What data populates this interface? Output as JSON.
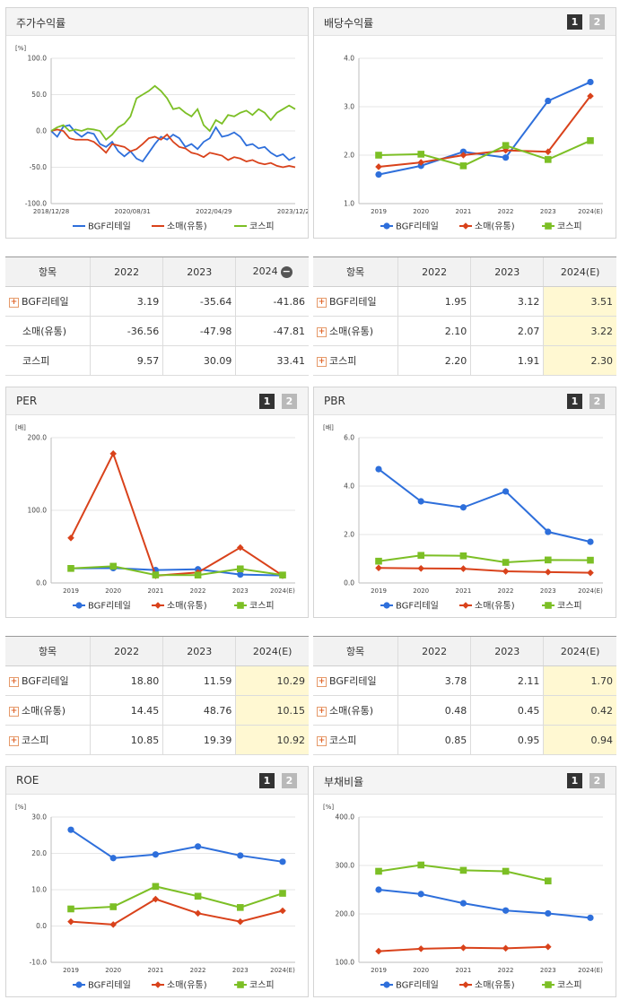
{
  "colors": {
    "bgf": "#2e6fdb",
    "retail": "#d9421b",
    "kospi": "#7cbf25"
  },
  "icons": {
    "expand": "plus-icon",
    "collapse": "minus-icon"
  },
  "pages": {
    "one": "1",
    "two": "2"
  },
  "charts": {
    "stock": {
      "title": "주가수익률",
      "unit": "[%]",
      "chart_data": {
        "type": "line",
        "ylim": [
          -100,
          100
        ],
        "yticks": [
          "100.0",
          "50.0",
          "0.0",
          "-50.0",
          "-100.0"
        ],
        "x_tick_labels": [
          "2018/12/28",
          "2020/08/31",
          "2022/04/29",
          "2023/12/28"
        ],
        "series": [
          {
            "name": "BGF리테일",
            "values": [
              0,
              -8,
              6,
              8,
              -2,
              -8,
              -2,
              -4,
              -18,
              -22,
              -15,
              -28,
              -35,
              -28,
              -38,
              -42,
              -30,
              -18,
              -8,
              -12,
              -5,
              -10,
              -22,
              -18,
              -25,
              -15,
              -10,
              5,
              -8,
              -6,
              -2,
              -8,
              -20,
              -18,
              -24,
              -22,
              -30,
              -35,
              -32,
              -40,
              -36
            ]
          },
          {
            "name": "소매(유통)",
            "values": [
              0,
              2,
              0,
              -10,
              -12,
              -12,
              -12,
              -15,
              -22,
              -30,
              -18,
              -20,
              -22,
              -28,
              -25,
              -18,
              -10,
              -8,
              -12,
              -5,
              -15,
              -22,
              -24,
              -30,
              -32,
              -36,
              -30,
              -32,
              -34,
              -40,
              -36,
              -38,
              -42,
              -40,
              -44,
              -46,
              -44,
              -48,
              -50,
              -48,
              -50
            ]
          },
          {
            "name": "코스피",
            "values": [
              0,
              5,
              8,
              0,
              2,
              0,
              3,
              2,
              0,
              -12,
              -5,
              5,
              10,
              20,
              45,
              50,
              55,
              62,
              55,
              45,
              30,
              32,
              25,
              20,
              30,
              8,
              0,
              15,
              10,
              22,
              20,
              25,
              28,
              22,
              30,
              25,
              15,
              25,
              30,
              35,
              30
            ]
          }
        ]
      }
    },
    "div": {
      "title": "배당수익률",
      "chart_data": {
        "type": "line",
        "ylim": [
          1.0,
          4.0
        ],
        "yticks": [
          "4.0",
          "3.0",
          "2.0",
          "1.0"
        ],
        "categories": [
          "2019",
          "2020",
          "2021",
          "2022",
          "2023",
          "2024(E)"
        ],
        "series": [
          {
            "name": "BGF리테일",
            "values": [
              1.6,
              1.78,
              2.07,
              1.95,
              3.12,
              3.51
            ]
          },
          {
            "name": "소매(유통)",
            "values": [
              1.76,
              1.85,
              2.0,
              2.1,
              2.07,
              3.22
            ]
          },
          {
            "name": "코스피",
            "values": [
              2.0,
              2.02,
              1.78,
              2.2,
              1.91,
              2.3
            ]
          }
        ]
      }
    },
    "per": {
      "title": "PER",
      "unit": "[배]",
      "chart_data": {
        "type": "line",
        "ylim": [
          0,
          200
        ],
        "yticks": [
          "200.0",
          "100.0",
          "0.0"
        ],
        "categories": [
          "2019",
          "2020",
          "2021",
          "2022",
          "2023",
          "2024(E)"
        ],
        "series": [
          {
            "name": "BGF리테일",
            "values": [
              20.0,
              20.5,
              17.8,
              18.8,
              11.59,
              10.29
            ]
          },
          {
            "name": "소매(유통)",
            "values": [
              62.0,
              178.0,
              10.0,
              14.45,
              48.76,
              10.15
            ]
          },
          {
            "name": "코스피",
            "values": [
              20.0,
              23.0,
              11.0,
              10.85,
              19.39,
              10.92
            ]
          }
        ]
      }
    },
    "pbr": {
      "title": "PBR",
      "unit": "[배]",
      "chart_data": {
        "type": "line",
        "ylim": [
          0,
          6
        ],
        "yticks": [
          "6.0",
          "4.0",
          "2.0",
          "0.0"
        ],
        "categories": [
          "2019",
          "2020",
          "2021",
          "2022",
          "2023",
          "2024(E)"
        ],
        "series": [
          {
            "name": "BGF리테일",
            "values": [
              4.7,
              3.37,
              3.12,
              3.78,
              2.11,
              1.7
            ]
          },
          {
            "name": "소매(유통)",
            "values": [
              0.62,
              0.6,
              0.59,
              0.48,
              0.45,
              0.42
            ]
          },
          {
            "name": "코스피",
            "values": [
              0.9,
              1.14,
              1.12,
              0.85,
              0.95,
              0.94
            ]
          }
        ]
      }
    },
    "roe": {
      "title": "ROE",
      "unit": "[%]",
      "chart_data": {
        "type": "line",
        "ylim": [
          -10,
          30
        ],
        "yticks": [
          "30.0",
          "20.0",
          "10.0",
          "0.0",
          "-10.0"
        ],
        "categories": [
          "2019",
          "2020",
          "2021",
          "2022",
          "2023",
          "2024(E)"
        ],
        "series": [
          {
            "name": "BGF리테일",
            "values": [
              26.5,
              18.7,
              19.7,
              21.9,
              19.4,
              17.7
            ]
          },
          {
            "name": "소매(유통)",
            "values": [
              1.2,
              0.4,
              7.4,
              3.5,
              1.2,
              4.2
            ]
          },
          {
            "name": "코스피",
            "values": [
              4.7,
              5.3,
              10.9,
              8.2,
              5.1,
              9.0
            ]
          }
        ]
      }
    },
    "debt": {
      "title": "부채비율",
      "unit": "[%]",
      "chart_data": {
        "type": "line",
        "ylim": [
          100,
          400
        ],
        "yticks": [
          "400.0",
          "300.0",
          "200.0",
          "100.0"
        ],
        "categories": [
          "2019",
          "2020",
          "2021",
          "2022",
          "2023",
          "2024(E)"
        ],
        "series": [
          {
            "name": "BGF리테일",
            "values": [
              250,
              241,
              222,
              207,
              201,
              192
            ]
          },
          {
            "name": "소매(유통)",
            "values": [
              123,
              128,
              130,
              129,
              132,
              null
            ]
          },
          {
            "name": "코스피",
            "values": [
              288,
              301,
              290,
              288,
              268,
              null
            ]
          }
        ]
      }
    }
  },
  "tables": {
    "stock": {
      "header": [
        "항목",
        "2022",
        "2023",
        "2024"
      ],
      "rows": [
        {
          "name": "BGF리테일",
          "values": [
            "3.19",
            "-35.64",
            "-41.86"
          ]
        },
        {
          "name": "소매(유통)",
          "values": [
            "-36.56",
            "-47.98",
            "-47.81"
          ]
        },
        {
          "name": "코스피",
          "values": [
            "9.57",
            "30.09",
            "33.41"
          ]
        }
      ]
    },
    "div": {
      "header": [
        "항목",
        "2022",
        "2023",
        "2024(E)"
      ],
      "rows": [
        {
          "name": "BGF리테일",
          "values": [
            "1.95",
            "3.12",
            "3.51"
          ]
        },
        {
          "name": "소매(유통)",
          "values": [
            "2.10",
            "2.07",
            "3.22"
          ]
        },
        {
          "name": "코스피",
          "values": [
            "2.20",
            "1.91",
            "2.30"
          ]
        }
      ]
    },
    "per": {
      "header": [
        "항목",
        "2022",
        "2023",
        "2024(E)"
      ],
      "rows": [
        {
          "name": "BGF리테일",
          "values": [
            "18.80",
            "11.59",
            "10.29"
          ]
        },
        {
          "name": "소매(유통)",
          "values": [
            "14.45",
            "48.76",
            "10.15"
          ]
        },
        {
          "name": "코스피",
          "values": [
            "10.85",
            "19.39",
            "10.92"
          ]
        }
      ]
    },
    "pbr": {
      "header": [
        "항목",
        "2022",
        "2023",
        "2024(E)"
      ],
      "rows": [
        {
          "name": "BGF리테일",
          "values": [
            "3.78",
            "2.11",
            "1.70"
          ]
        },
        {
          "name": "소매(유통)",
          "values": [
            "0.48",
            "0.45",
            "0.42"
          ]
        },
        {
          "name": "코스피",
          "values": [
            "0.85",
            "0.95",
            "0.94"
          ]
        }
      ]
    }
  }
}
